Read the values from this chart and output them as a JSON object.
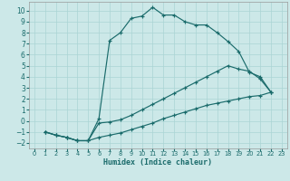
{
  "xlabel": "Humidex (Indice chaleur)",
  "xlim": [
    -0.5,
    23.5
  ],
  "ylim": [
    -2.5,
    10.8
  ],
  "xticks": [
    0,
    1,
    2,
    3,
    4,
    5,
    6,
    7,
    8,
    9,
    10,
    11,
    12,
    13,
    14,
    15,
    16,
    17,
    18,
    19,
    20,
    21,
    22,
    23
  ],
  "yticks": [
    -2,
    -1,
    0,
    1,
    2,
    3,
    4,
    5,
    6,
    7,
    8,
    9,
    10
  ],
  "bg_color": "#cce8e8",
  "grid_color": "#aad4d4",
  "line_color": "#1a6b6b",
  "curve1_x": [
    1,
    2,
    3,
    4,
    5,
    6,
    7,
    8,
    9,
    10,
    11,
    12,
    13,
    14,
    15,
    16,
    17,
    18,
    19,
    20,
    21,
    22
  ],
  "curve1_y": [
    -1,
    -1.3,
    -1.5,
    -1.8,
    -1.8,
    0.2,
    7.3,
    8.0,
    9.3,
    9.5,
    10.3,
    9.6,
    9.6,
    9.0,
    8.7,
    8.7,
    8.0,
    7.2,
    6.3,
    4.4,
    4.0,
    2.6
  ],
  "curve2_x": [
    1,
    2,
    3,
    4,
    5,
    6,
    7,
    8,
    9,
    10,
    11,
    12,
    13,
    14,
    15,
    16,
    17,
    18,
    19,
    20,
    21,
    22
  ],
  "curve2_y": [
    -1,
    -1.3,
    -1.5,
    -1.8,
    -1.8,
    -0.2,
    -0.1,
    0.1,
    0.5,
    1.0,
    1.5,
    2.0,
    2.5,
    3.0,
    3.5,
    4.0,
    4.5,
    5.0,
    4.7,
    4.5,
    3.8,
    2.6
  ],
  "curve3_x": [
    1,
    2,
    3,
    4,
    5,
    6,
    7,
    8,
    9,
    10,
    11,
    12,
    13,
    14,
    15,
    16,
    17,
    18,
    19,
    20,
    21,
    22
  ],
  "curve3_y": [
    -1,
    -1.3,
    -1.5,
    -1.8,
    -1.8,
    -1.5,
    -1.3,
    -1.1,
    -0.8,
    -0.5,
    -0.2,
    0.2,
    0.5,
    0.8,
    1.1,
    1.4,
    1.6,
    1.8,
    2.0,
    2.2,
    2.3,
    2.6
  ]
}
